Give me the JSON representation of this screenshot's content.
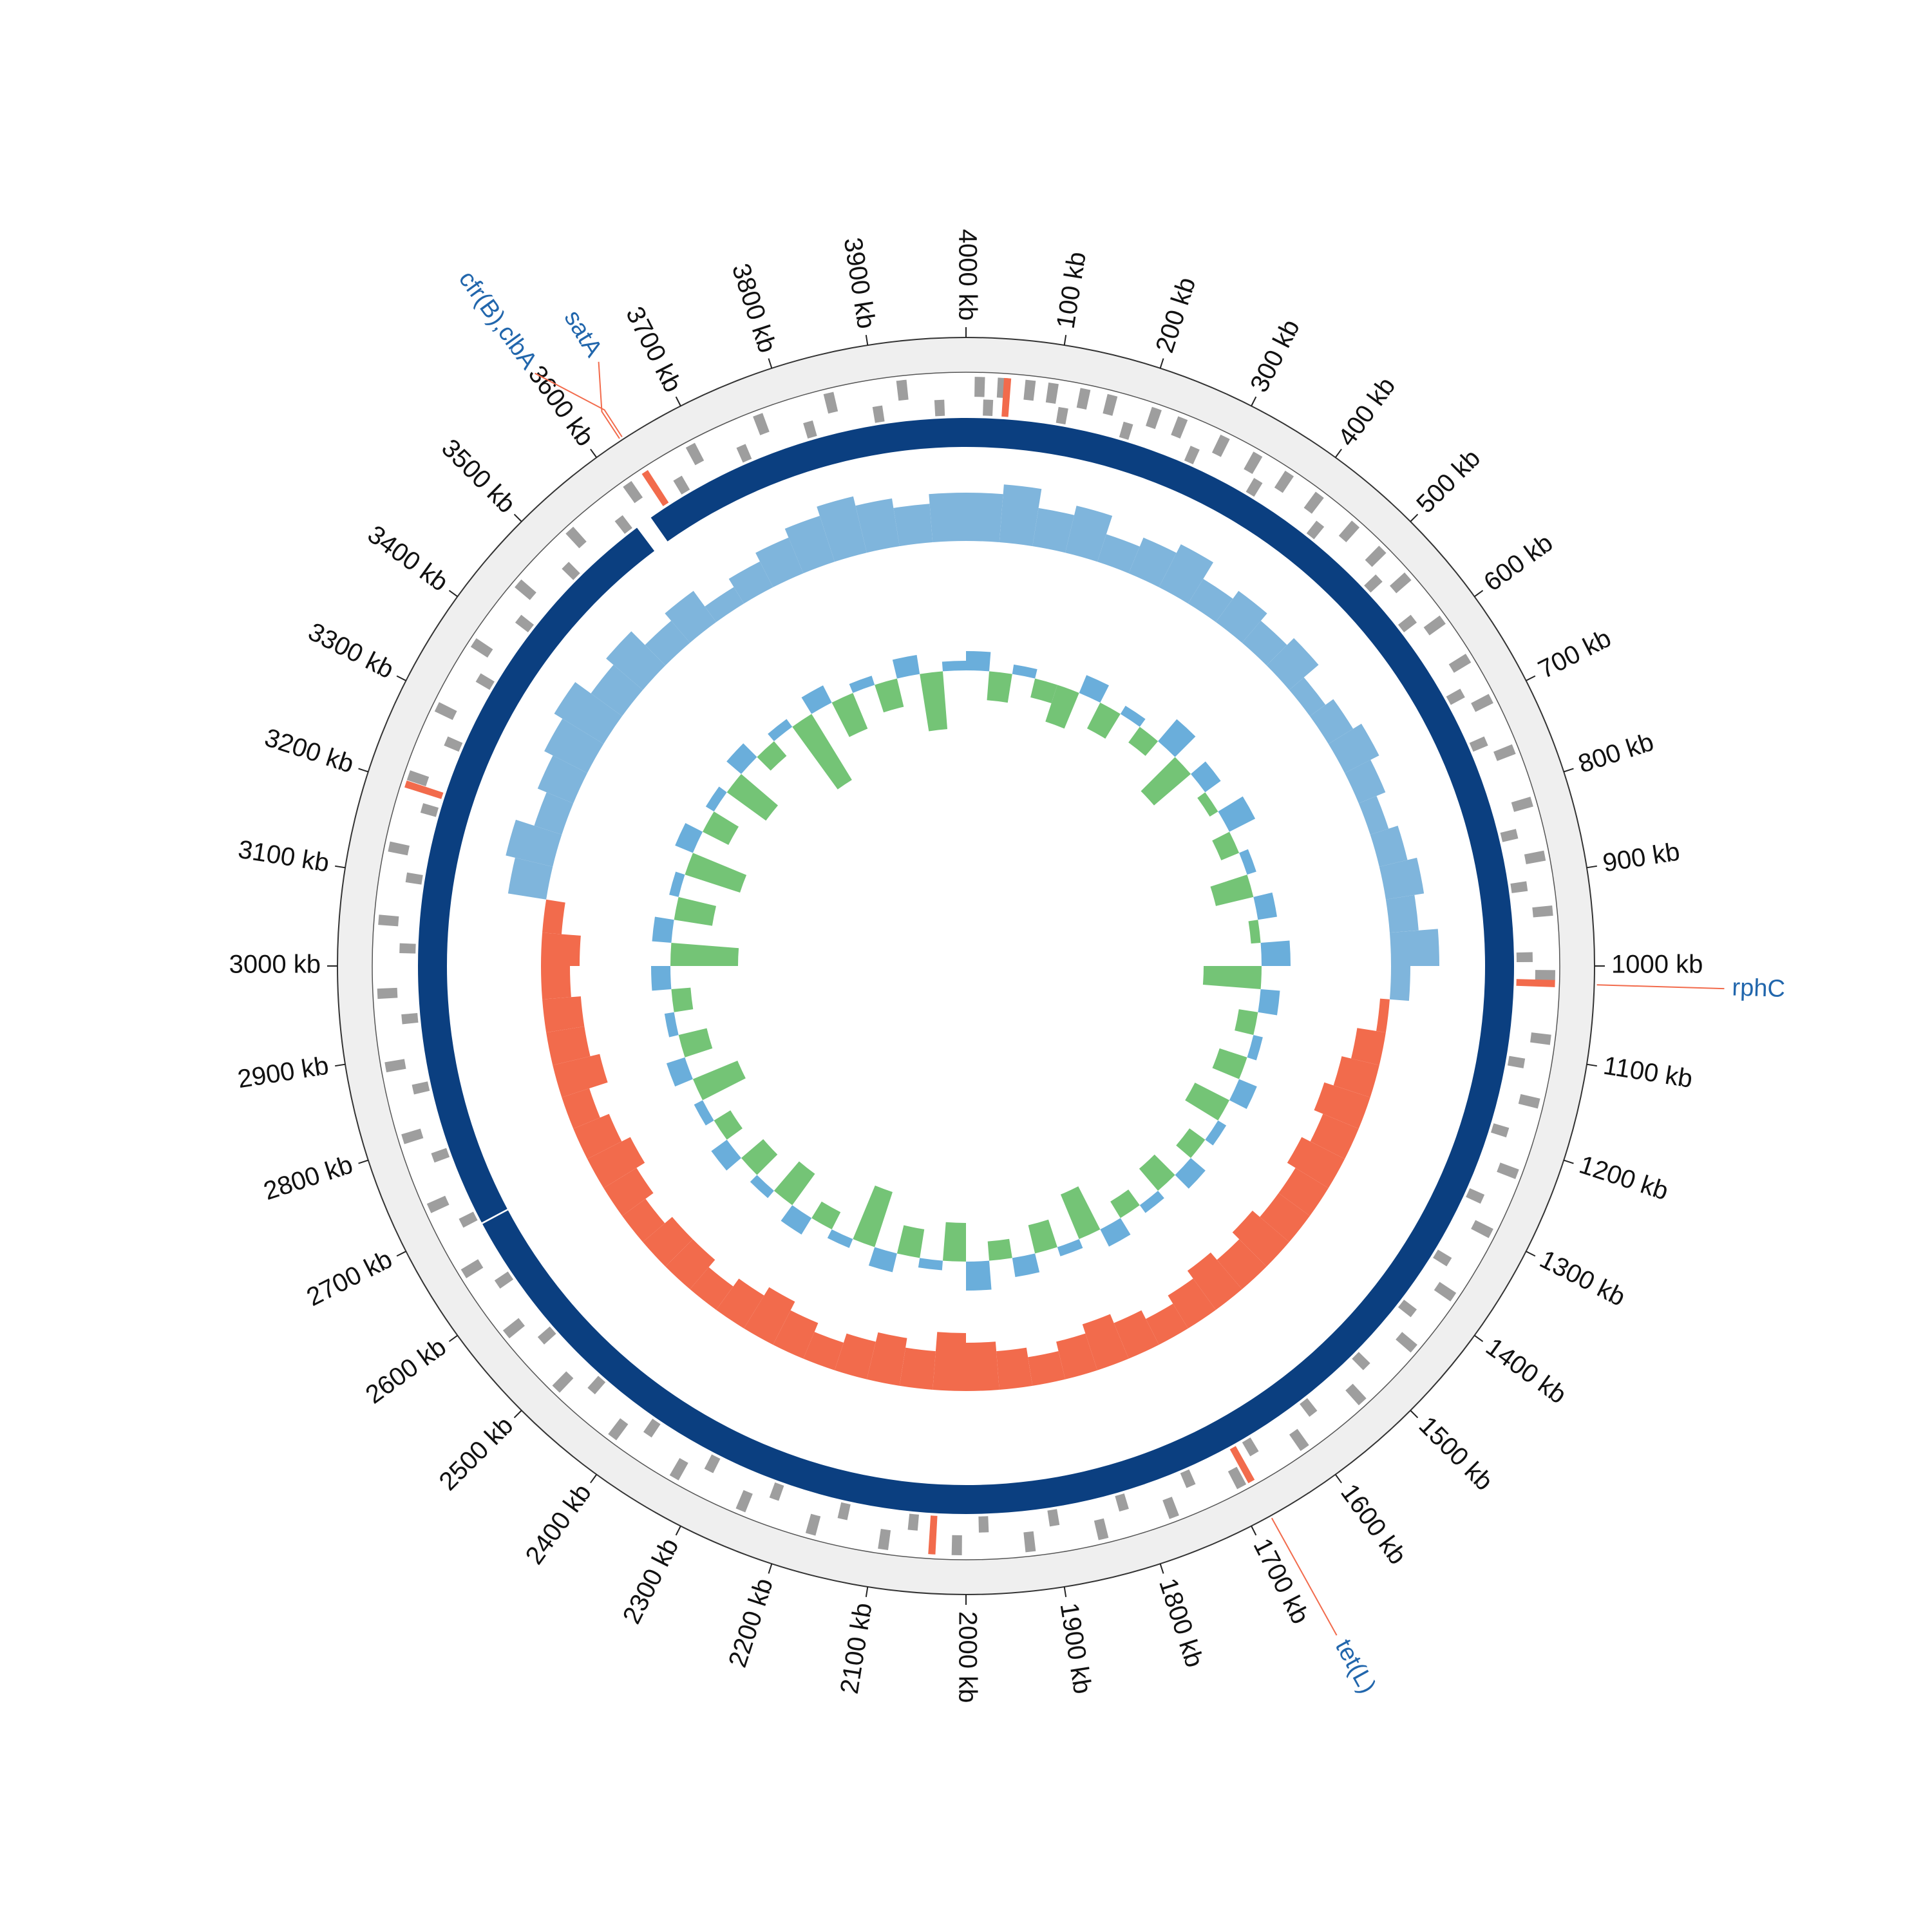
{
  "chart_data": {
    "type": "circos",
    "xlim": [
      0,
      4000
    ],
    "xticks": [
      {
        "value": 100,
        "label": "100 kb"
      },
      {
        "value": 200,
        "label": "200 kb"
      },
      {
        "value": 300,
        "label": "300 kb"
      },
      {
        "value": 400,
        "label": "400 kb"
      },
      {
        "value": 500,
        "label": "500 kb"
      },
      {
        "value": 600,
        "label": "600 kb"
      },
      {
        "value": 700,
        "label": "700 kb"
      },
      {
        "value": 800,
        "label": "800 kb"
      },
      {
        "value": 900,
        "label": "900 kb"
      },
      {
        "value": 1000,
        "label": "1000 kb"
      },
      {
        "value": 1100,
        "label": "1100 kb"
      },
      {
        "value": 1200,
        "label": "1200 kb"
      },
      {
        "value": 1300,
        "label": "1300 kb"
      },
      {
        "value": 1400,
        "label": "1400 kb"
      },
      {
        "value": 1500,
        "label": "1500 kb"
      },
      {
        "value": 1600,
        "label": "1600 kb"
      },
      {
        "value": 1700,
        "label": "1700 kb"
      },
      {
        "value": 1800,
        "label": "1800 kb"
      },
      {
        "value": 1900,
        "label": "1900 kb"
      },
      {
        "value": 2000,
        "label": "2000 kb"
      },
      {
        "value": 2100,
        "label": "2100 kb"
      },
      {
        "value": 2200,
        "label": "2200 kb"
      },
      {
        "value": 2300,
        "label": "2300 kb"
      },
      {
        "value": 2400,
        "label": "2400 kb"
      },
      {
        "value": 2500,
        "label": "2500 kb"
      },
      {
        "value": 2600,
        "label": "2600 kb"
      },
      {
        "value": 2700,
        "label": "2700 kb"
      },
      {
        "value": 2800,
        "label": "2800 kb"
      },
      {
        "value": 2900,
        "label": "2900 kb"
      },
      {
        "value": 3000,
        "label": "3000 kb"
      },
      {
        "value": 3100,
        "label": "3100 kb"
      },
      {
        "value": 3200,
        "label": "3200 kb"
      },
      {
        "value": 3300,
        "label": "3300 kb"
      },
      {
        "value": 3400,
        "label": "3400 kb"
      },
      {
        "value": 3500,
        "label": "3500 kb"
      },
      {
        "value": 3600,
        "label": "3600 kb"
      },
      {
        "value": 3700,
        "label": "3700 kb"
      },
      {
        "value": 3800,
        "label": "3800 kb"
      },
      {
        "value": 3900,
        "label": "3900 kb"
      },
      {
        "value": 4000,
        "label": "4000 kb"
      }
    ],
    "genes": {
      "color": "#9e9e9e",
      "forward": [
        15,
        40,
        70,
        95,
        130,
        160,
        210,
        240,
        290,
        330,
        370,
        410,
        460,
        500,
        540,
        600,
        650,
        700,
        760,
        820,
        880,
        940,
        1010,
        1080,
        1150,
        1230,
        1300,
        1380,
        1450,
        1530,
        1610,
        1690,
        1770,
        1850,
        1930,
        2010,
        2090,
        2170,
        2250,
        2330,
        2410,
        2490,
        2570,
        2650,
        2730,
        2810,
        2890,
        2970,
        3050,
        3130,
        3210,
        3290,
        3370,
        3450,
        3530,
        3610,
        3690,
        3770,
        3850,
        3930
      ],
      "reverse": [
        25,
        110,
        185,
        265,
        345,
        430,
        520,
        580,
        680,
        740,
        850,
        910,
        990,
        1110,
        1190,
        1270,
        1350,
        1420,
        1500,
        1580,
        1660,
        1740,
        1820,
        1900,
        1980,
        2060,
        2140,
        2220,
        2300,
        2380,
        2460,
        2540,
        2620,
        2700,
        2780,
        2860,
        2940,
        3020,
        3100,
        3180,
        3260,
        3340,
        3420,
        3500,
        3580,
        3660,
        3740,
        3820,
        3900,
        3970
      ]
    },
    "highlight_genes": {
      "color": "#f26b4c",
      "positions": [
        45,
        1019,
        1678,
        2037,
        3200,
        3633
      ]
    },
    "contigs": {
      "color": "#0b3f80",
      "ranges": [
        [
          3610,
          2688
        ],
        [
          2690,
          3590
        ]
      ]
    },
    "x": [
      0,
      50,
      100,
      150,
      200,
      250,
      300,
      350,
      400,
      450,
      500,
      550,
      600,
      650,
      700,
      750,
      800,
      850,
      900,
      950,
      1000,
      1050,
      1100,
      1150,
      1200,
      1250,
      1300,
      1350,
      1400,
      1450,
      1500,
      1550,
      1600,
      1650,
      1700,
      1750,
      1800,
      1850,
      1900,
      1950,
      2000,
      2050,
      2100,
      2150,
      2200,
      2250,
      2300,
      2350,
      2400,
      2450,
      2500,
      2550,
      2600,
      2650,
      2700,
      2750,
      2800,
      2850,
      2900,
      2950,
      3000,
      3050,
      3100,
      3150,
      3200,
      3250,
      3300,
      3350,
      3400,
      3450,
      3500,
      3550,
      3600,
      3650,
      3700,
      3750,
      3800,
      3850,
      3900,
      3950
    ],
    "gc_content": {
      "positive_color": "#7fb5dc",
      "negative_color": "#f26b4c",
      "values": [
        5,
        6,
        4,
        5,
        3,
        4,
        5,
        3,
        4,
        3,
        4,
        2,
        3,
        4,
        3,
        2,
        3,
        4,
        3,
        5,
        2,
        -1,
        -3,
        -4,
        -5,
        -4,
        -5,
        -4,
        -4,
        -5,
        -4,
        -5,
        -4,
        -3,
        -4,
        -5,
        -4,
        -3,
        -4,
        -5,
        -6,
        -4,
        -5,
        -4,
        -3,
        -4,
        -5,
        -4,
        -3,
        -4,
        -4,
        -3,
        -4,
        -5,
        -4,
        -3,
        -5,
        -4,
        -4,
        -3,
        -4,
        -2,
        4,
        5,
        3,
        4,
        5,
        6,
        4,
        5,
        3,
        4,
        2,
        3,
        4,
        5,
        6,
        5,
        4,
        5
      ]
    },
    "gc_skew": {
      "positive_color": "#6aaedb",
      "negative_color": "#74c476",
      "values": [
        2,
        -3,
        1,
        -2,
        -4,
        2,
        -3,
        1,
        -2,
        3,
        -5,
        2,
        -1,
        3,
        -2,
        1,
        -4,
        2,
        -1,
        3,
        -6,
        2,
        -2,
        1,
        -3,
        2,
        -4,
        1,
        -2,
        2,
        -3,
        1,
        -2,
        2,
        -5,
        1,
        -3,
        2,
        -2,
        3,
        -4,
        1,
        -3,
        2,
        -6,
        1,
        -2,
        2,
        -4,
        1,
        -3,
        2,
        -2,
        1,
        -5,
        2,
        -3,
        1,
        -2,
        2,
        -7,
        2,
        -4,
        1,
        -6,
        2,
        -3,
        1,
        -5,
        2,
        -2,
        1,
        -8,
        2,
        -4,
        1,
        -3,
        2,
        -6,
        1
      ]
    },
    "annotations": [
      {
        "text": "rphC",
        "position": 1019
      },
      {
        "text": "tet(L)",
        "position": 1678
      },
      {
        "text": "cfr(B),clbA",
        "position": 3633
      },
      {
        "text": "satA",
        "position": 3630
      }
    ]
  }
}
